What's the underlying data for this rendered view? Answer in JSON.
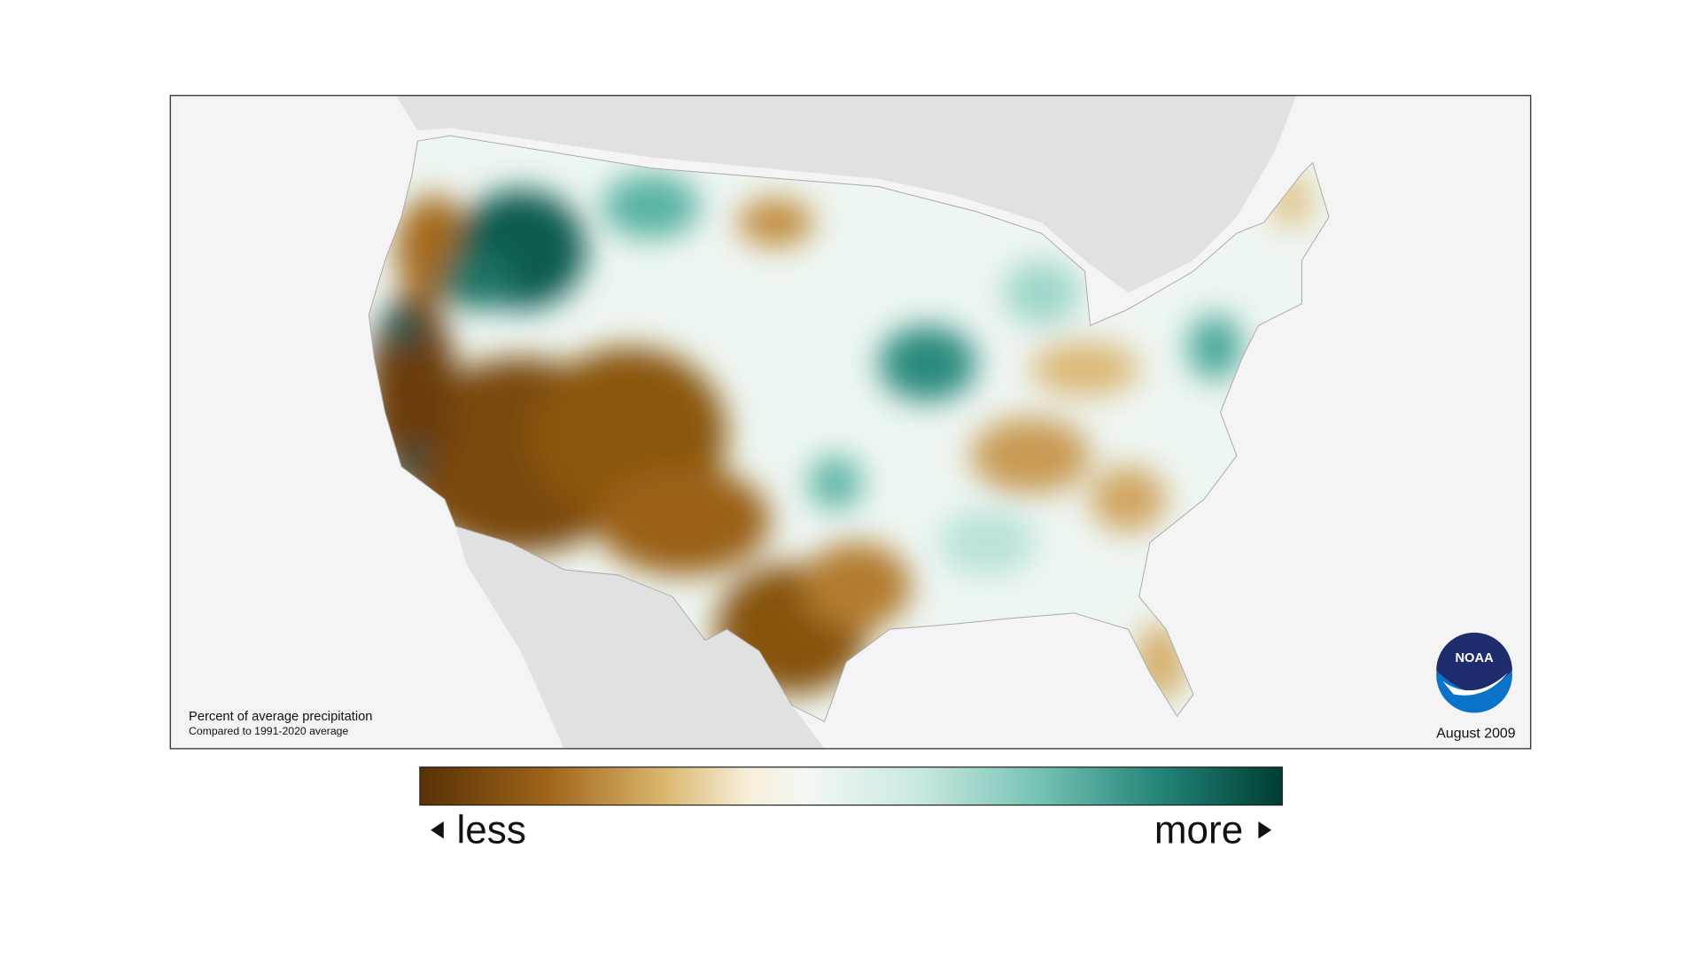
{
  "map": {
    "caption": {
      "title": "Percent of average precipitation",
      "subtitle": "Compared to 1991-2020 average"
    },
    "date": "August 2009",
    "logo": "NOAA",
    "legend": {
      "low_label": "less",
      "high_label": "more"
    }
  }
}
